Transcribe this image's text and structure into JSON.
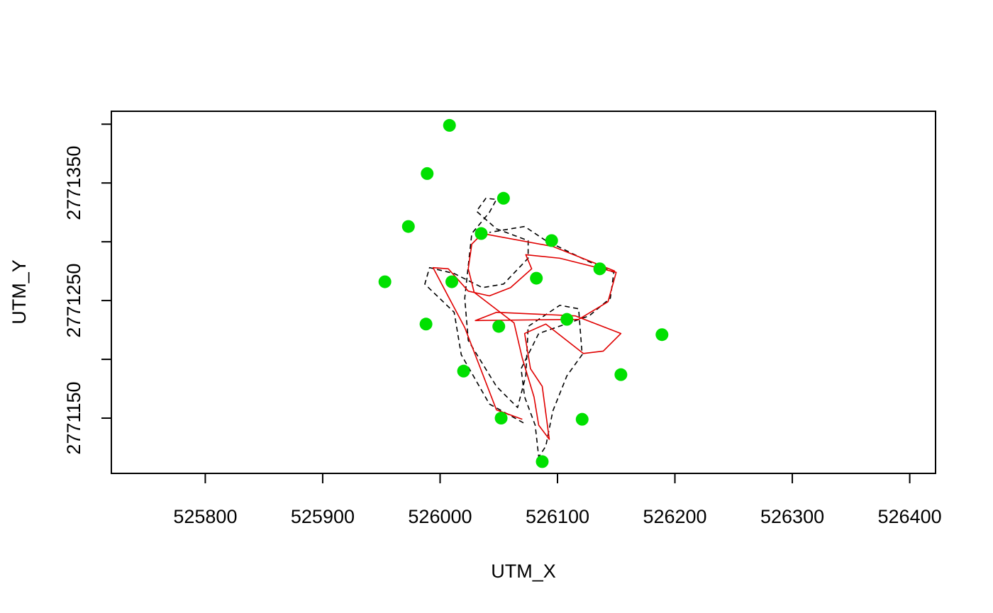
{
  "chart_data": {
    "type": "scatter",
    "x_label": "UTM_X",
    "y_label": "UTM_Y",
    "xlim": [
      525720,
      526422
    ],
    "ylim": [
      2771103,
      2771411
    ],
    "xticks": [
      525800,
      525900,
      526000,
      526100,
      526200,
      526300,
      526400
    ],
    "yticks": [
      2771150,
      2771250,
      2771350
    ],
    "yminor_ticks": [
      2771200,
      2771300,
      2771400
    ],
    "series": [
      {
        "mode": "points",
        "color": "#00e000",
        "x": [
          526008,
          525989,
          526054,
          525973,
          526035,
          526095,
          526136,
          525953,
          526010,
          526082,
          526108,
          525988,
          526050,
          526189,
          526020,
          526154,
          526052,
          526121,
          526087
        ],
        "y": [
          2771399,
          2771358,
          2771337,
          2771313,
          2771307,
          2771301,
          2771277,
          2771266,
          2771266,
          2771269,
          2771234,
          2771230,
          2771228,
          2771221,
          2771190,
          2771187,
          2771150,
          2771149,
          2771113
        ]
      },
      {
        "mode": "line",
        "dash": true,
        "color": "#000000",
        "x": [
          526071,
          526042,
          526018,
          526012,
          525987,
          525991,
          526012,
          526036,
          526054,
          526075,
          526075,
          526048,
          526031,
          526039,
          526048,
          526042,
          526027,
          526021,
          526024,
          526048,
          526066,
          526073,
          526075,
          526102,
          526118,
          526121,
          526108,
          526096,
          526090,
          526084,
          526081,
          526072,
          526069,
          526084,
          526127,
          526145,
          526148,
          526127,
          526090,
          526072,
          526042
        ],
        "y": [
          2771146,
          2771162,
          2771204,
          2771240,
          2771264,
          2771278,
          2771273,
          2771261,
          2771264,
          2771286,
          2771301,
          2771311,
          2771326,
          2771337,
          2771336,
          2771325,
          2771307,
          2771252,
          2771216,
          2771177,
          2771159,
          2771186,
          2771228,
          2771246,
          2771243,
          2771204,
          2771186,
          2771156,
          2771126,
          2771117,
          2771144,
          2771168,
          2771192,
          2771222,
          2771237,
          2771252,
          2771274,
          2771283,
          2771301,
          2771313,
          2771308
        ]
      },
      {
        "mode": "line",
        "dash": false,
        "color": "#e00000",
        "x": [
          526070,
          526048,
          526021,
          525994,
          526007,
          526024,
          526042,
          526060,
          526078,
          526073,
          526102,
          526150,
          526143,
          526118,
          526030,
          526048,
          526115,
          526154,
          526139,
          526122,
          526090,
          526072,
          526077,
          526087,
          526093,
          526084,
          526080,
          526070,
          526063,
          526029,
          526024,
          526027,
          526036,
          526096,
          526149
        ],
        "y": [
          2771149,
          2771157,
          2771227,
          2771278,
          2771277,
          2771258,
          2771254,
          2771261,
          2771277,
          2771289,
          2771286,
          2771274,
          2771249,
          2771234,
          2771233,
          2771240,
          2771237,
          2771222,
          2771207,
          2771205,
          2771230,
          2771222,
          2771192,
          2771177,
          2771132,
          2771144,
          2771168,
          2771201,
          2771231,
          2771257,
          2771277,
          2771298,
          2771307,
          2771296,
          2771275
        ]
      }
    ]
  }
}
